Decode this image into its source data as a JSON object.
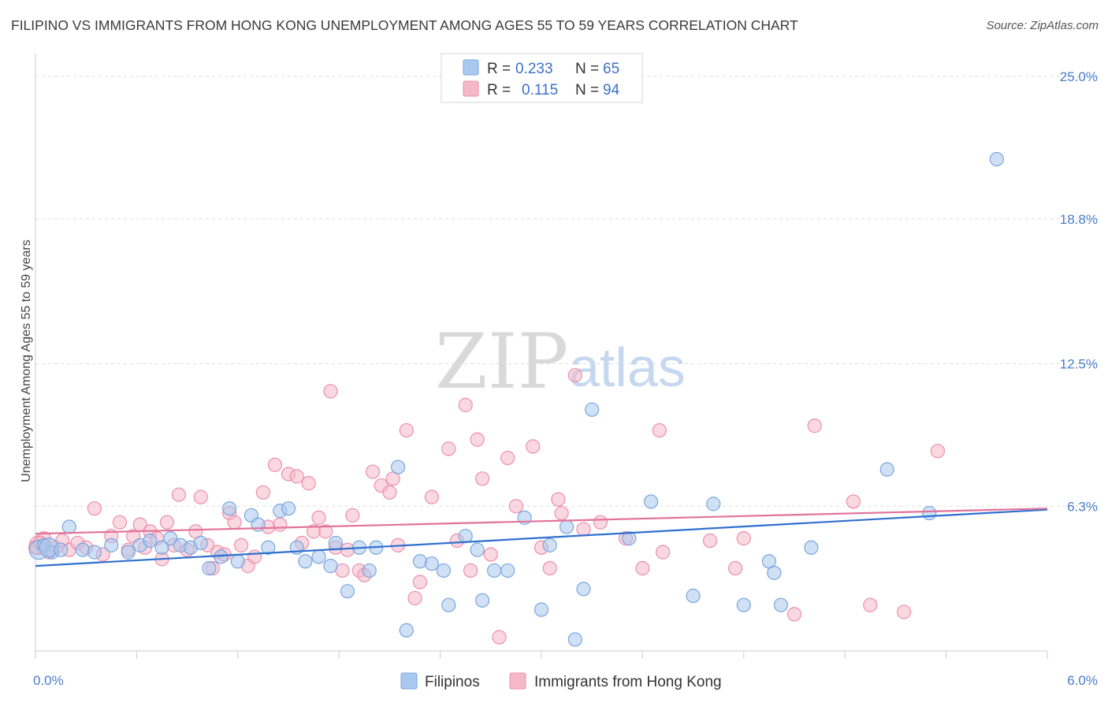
{
  "title": "FILIPINO VS IMMIGRANTS FROM HONG KONG UNEMPLOYMENT AMONG AGES 55 TO 59 YEARS CORRELATION CHART",
  "source": "Source: ZipAtlas.com",
  "watermark": {
    "zip": "ZIP",
    "atlas": "atlas"
  },
  "colors": {
    "blue_fill": "#a9c8ef",
    "blue_stroke": "#7aa6dc",
    "blue_line": "#2f6fcf",
    "pink_fill": "#f5b8cb",
    "pink_stroke": "#ec8fac",
    "pink_line": "#e2729a",
    "tick_text": "#4a7cc9",
    "grid": "#dddddd"
  },
  "legend": {
    "rows": [
      {
        "r_label": "R =",
        "r_value": "0.233",
        "n_label": "N =",
        "n_value": "65"
      },
      {
        "r_label": "R =",
        "r_value": "0.115",
        "n_label": "N =",
        "n_value": "94"
      }
    ]
  },
  "chart_data": {
    "type": "scatter",
    "title": "FILIPINO VS IMMIGRANTS FROM HONG KONG UNEMPLOYMENT AMONG AGES 55 TO 59 YEARS CORRELATION CHART",
    "xlabel": "",
    "ylabel": "Unemployment Among Ages 55 to 59 years",
    "xlim": [
      0,
      6.0
    ],
    "ylim": [
      0,
      25.0
    ],
    "x_tick_labels": [
      "0.0%",
      "6.0%"
    ],
    "y_ticks": [
      6.3,
      12.5,
      18.8,
      25.0
    ],
    "y_tick_labels": [
      "6.3%",
      "12.5%",
      "18.8%",
      "25.0%"
    ],
    "series": [
      {
        "name": "Filipinos",
        "trend": {
          "x": [
            0.0,
            6.0
          ],
          "y": [
            3.7,
            6.15
          ]
        },
        "points": [
          [
            0.02,
            4.4
          ],
          [
            0.05,
            4.6
          ],
          [
            0.1,
            4.3
          ],
          [
            0.2,
            5.4
          ],
          [
            0.28,
            4.4
          ],
          [
            0.35,
            4.3
          ],
          [
            0.45,
            4.6
          ],
          [
            0.55,
            4.3
          ],
          [
            0.62,
            4.6
          ],
          [
            0.68,
            4.8
          ],
          [
            0.75,
            4.5
          ],
          [
            0.8,
            4.9
          ],
          [
            0.86,
            4.6
          ],
          [
            0.92,
            4.5
          ],
          [
            0.98,
            4.7
          ],
          [
            1.03,
            3.6
          ],
          [
            1.1,
            4.1
          ],
          [
            1.15,
            6.2
          ],
          [
            1.2,
            3.9
          ],
          [
            1.28,
            5.9
          ],
          [
            1.32,
            5.5
          ],
          [
            1.38,
            4.5
          ],
          [
            1.45,
            6.1
          ],
          [
            1.5,
            6.2
          ],
          [
            1.55,
            4.5
          ],
          [
            1.6,
            3.9
          ],
          [
            1.68,
            4.1
          ],
          [
            1.75,
            3.7
          ],
          [
            1.78,
            4.7
          ],
          [
            1.85,
            2.6
          ],
          [
            1.92,
            4.5
          ],
          [
            1.98,
            3.5
          ],
          [
            2.02,
            4.5
          ],
          [
            2.15,
            8.0
          ],
          [
            2.2,
            0.9
          ],
          [
            2.28,
            3.9
          ],
          [
            2.35,
            3.8
          ],
          [
            2.42,
            3.5
          ],
          [
            2.45,
            2.0
          ],
          [
            2.55,
            5.0
          ],
          [
            2.62,
            4.4
          ],
          [
            2.65,
            2.2
          ],
          [
            2.72,
            3.5
          ],
          [
            2.8,
            3.5
          ],
          [
            2.9,
            5.8
          ],
          [
            3.0,
            1.8
          ],
          [
            3.05,
            4.6
          ],
          [
            3.15,
            5.4
          ],
          [
            3.2,
            0.5
          ],
          [
            3.25,
            2.7
          ],
          [
            3.3,
            10.5
          ],
          [
            3.52,
            4.9
          ],
          [
            3.65,
            6.5
          ],
          [
            3.9,
            2.4
          ],
          [
            4.02,
            6.4
          ],
          [
            4.2,
            2.0
          ],
          [
            4.35,
            3.9
          ],
          [
            4.38,
            3.4
          ],
          [
            4.42,
            2.0
          ],
          [
            4.6,
            4.5
          ],
          [
            5.05,
            7.9
          ],
          [
            5.3,
            6.0
          ],
          [
            5.7,
            21.4
          ],
          [
            0.08,
            4.5
          ],
          [
            0.15,
            4.4
          ]
        ]
      },
      {
        "name": "Immigrants from Hong Kong",
        "trend": {
          "x": [
            0.0,
            6.0
          ],
          "y": [
            5.1,
            6.2
          ]
        },
        "points": [
          [
            0.02,
            4.6
          ],
          [
            0.05,
            4.9
          ],
          [
            0.08,
            4.3
          ],
          [
            0.12,
            4.5
          ],
          [
            0.16,
            4.8
          ],
          [
            0.2,
            4.4
          ],
          [
            0.25,
            4.7
          ],
          [
            0.3,
            4.5
          ],
          [
            0.35,
            6.2
          ],
          [
            0.4,
            4.2
          ],
          [
            0.45,
            5.0
          ],
          [
            0.5,
            5.6
          ],
          [
            0.55,
            4.4
          ],
          [
            0.58,
            5.0
          ],
          [
            0.62,
            5.5
          ],
          [
            0.65,
            4.5
          ],
          [
            0.68,
            5.2
          ],
          [
            0.72,
            4.9
          ],
          [
            0.75,
            4.0
          ],
          [
            0.78,
            5.6
          ],
          [
            0.82,
            4.6
          ],
          [
            0.85,
            6.8
          ],
          [
            0.9,
            4.4
          ],
          [
            0.95,
            5.2
          ],
          [
            0.98,
            6.7
          ],
          [
            1.02,
            4.6
          ],
          [
            1.05,
            3.6
          ],
          [
            1.08,
            4.3
          ],
          [
            1.12,
            4.2
          ],
          [
            1.15,
            6.0
          ],
          [
            1.18,
            5.6
          ],
          [
            1.22,
            4.6
          ],
          [
            1.26,
            3.7
          ],
          [
            1.3,
            4.1
          ],
          [
            1.35,
            6.9
          ],
          [
            1.38,
            5.4
          ],
          [
            1.42,
            8.1
          ],
          [
            1.45,
            5.5
          ],
          [
            1.5,
            7.7
          ],
          [
            1.55,
            7.6
          ],
          [
            1.58,
            4.7
          ],
          [
            1.62,
            7.3
          ],
          [
            1.65,
            5.2
          ],
          [
            1.68,
            5.8
          ],
          [
            1.72,
            5.2
          ],
          [
            1.75,
            11.3
          ],
          [
            1.78,
            4.5
          ],
          [
            1.82,
            3.5
          ],
          [
            1.85,
            4.4
          ],
          [
            1.88,
            5.9
          ],
          [
            1.92,
            3.5
          ],
          [
            1.95,
            3.3
          ],
          [
            2.0,
            7.8
          ],
          [
            2.05,
            7.2
          ],
          [
            2.1,
            6.9
          ],
          [
            2.12,
            7.5
          ],
          [
            2.15,
            4.6
          ],
          [
            2.2,
            9.6
          ],
          [
            2.25,
            2.3
          ],
          [
            2.28,
            3.0
          ],
          [
            2.35,
            6.7
          ],
          [
            2.45,
            8.8
          ],
          [
            2.5,
            4.8
          ],
          [
            2.55,
            10.7
          ],
          [
            2.58,
            3.5
          ],
          [
            2.62,
            9.2
          ],
          [
            2.65,
            7.5
          ],
          [
            2.7,
            4.2
          ],
          [
            2.75,
            0.6
          ],
          [
            2.8,
            8.4
          ],
          [
            2.85,
            6.3
          ],
          [
            2.95,
            8.9
          ],
          [
            3.0,
            4.5
          ],
          [
            3.05,
            3.6
          ],
          [
            3.1,
            6.6
          ],
          [
            3.12,
            6.0
          ],
          [
            3.2,
            12.0
          ],
          [
            3.25,
            5.3
          ],
          [
            3.35,
            5.6
          ],
          [
            3.5,
            4.9
          ],
          [
            3.6,
            3.6
          ],
          [
            3.7,
            9.6
          ],
          [
            3.72,
            4.3
          ],
          [
            4.0,
            4.8
          ],
          [
            4.15,
            3.6
          ],
          [
            4.2,
            4.9
          ],
          [
            4.5,
            1.6
          ],
          [
            4.62,
            9.8
          ],
          [
            4.85,
            6.5
          ],
          [
            4.95,
            2.0
          ],
          [
            5.15,
            1.7
          ],
          [
            5.35,
            8.7
          ],
          [
            0.0,
            4.5
          ],
          [
            0.03,
            4.7
          ]
        ]
      }
    ],
    "legend": [
      {
        "label": "Filipinos",
        "r": "0.233",
        "n": "65"
      },
      {
        "label": "Immigrants from Hong Kong",
        "r": "0.115",
        "n": "94"
      }
    ]
  }
}
